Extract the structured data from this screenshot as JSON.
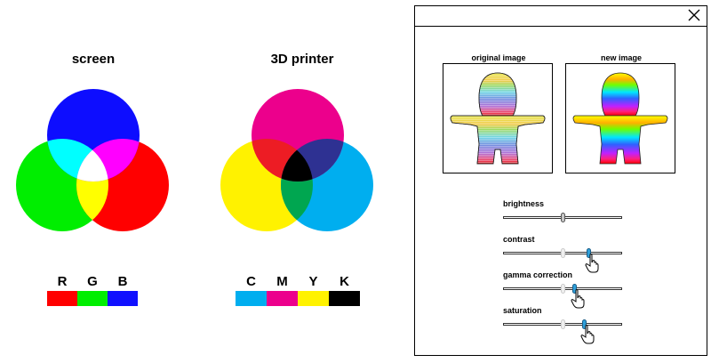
{
  "screen_title": "screen",
  "printer_title": "3D printer",
  "rgb_swatches": [
    {
      "label": "R",
      "color": "#ff0000"
    },
    {
      "label": "G",
      "color": "#00ee00"
    },
    {
      "label": "B",
      "color": "#1010ff"
    }
  ],
  "cmyk_swatches": [
    {
      "label": "C",
      "color": "#00aeef"
    },
    {
      "label": "M",
      "color": "#ec008c"
    },
    {
      "label": "Y",
      "color": "#fff200"
    },
    {
      "label": "K",
      "color": "#000000"
    }
  ],
  "dialog": {
    "close_icon": "close-icon",
    "original_caption": "original image",
    "new_caption": "new image",
    "sliders": [
      {
        "label": "brightness",
        "value": 0.5
      },
      {
        "label": "contrast",
        "value": 0.72,
        "previous": 0.5
      },
      {
        "label": "gamma correction",
        "value": 0.6,
        "previous": 0.5
      },
      {
        "label": "saturation",
        "value": 0.68,
        "previous": 0.5
      }
    ]
  }
}
